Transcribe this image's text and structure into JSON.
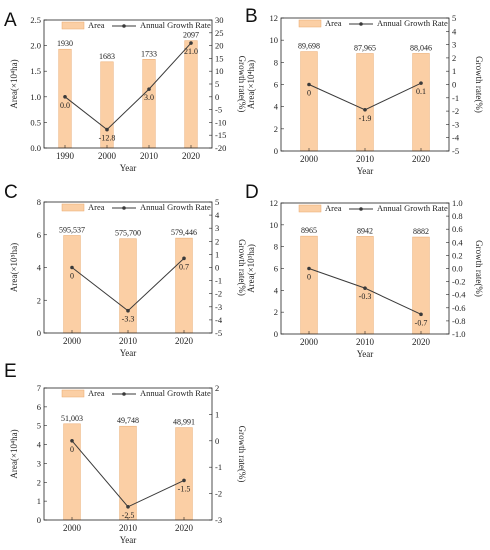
{
  "legend": {
    "bar_label": "Area",
    "line_label": "Annual Growth Rate"
  },
  "colors": {
    "bar_fill": "#fbcfa5",
    "bar_stroke": "#e9a86d",
    "line": "#3a3a3a",
    "text": "#222222"
  },
  "chart_data": [
    {
      "type": "bar",
      "panel": "A",
      "categories": [
        "1990",
        "2000",
        "2010",
        "2020"
      ],
      "xlabel": "Year",
      "ylabel": "Area(×10⁴ha)",
      "y2label": "Growth rate(%)",
      "ylim": [
        0,
        2.5
      ],
      "yticks": [
        "0.0",
        "0.5",
        "1.0",
        "1.5",
        "2.0",
        "2.5"
      ],
      "y2lim": [
        -20,
        30
      ],
      "y2ticks": [
        "-20",
        "-15",
        "-10",
        "-5",
        "0",
        "5",
        "10",
        "15",
        "20",
        "25",
        "30"
      ],
      "series": [
        {
          "name": "Area",
          "type": "bar",
          "values": [
            1930,
            1683,
            1733,
            2097
          ],
          "labels": [
            "1930",
            "1683",
            "1733",
            "2097"
          ],
          "scale": 0.001
        },
        {
          "name": "Annual Growth Rate",
          "type": "line",
          "values": [
            0.0,
            -12.8,
            3.0,
            21.0
          ],
          "labels": [
            "0.0",
            "-12.8",
            "3.0",
            "21.0"
          ]
        }
      ]
    },
    {
      "type": "bar",
      "panel": "B",
      "categories": [
        "2000",
        "2010",
        "2020"
      ],
      "xlabel": "Year",
      "ylabel": "Area(×10⁴ha)",
      "y2label": "Growth rate(%)",
      "ylim": [
        0,
        12
      ],
      "yticks": [
        "0",
        "2",
        "4",
        "6",
        "8",
        "10",
        "12"
      ],
      "y2lim": [
        -5,
        5
      ],
      "y2ticks": [
        "-5",
        "-4",
        "-3",
        "-2",
        "-1",
        "0",
        "1",
        "2",
        "3",
        "4",
        "5"
      ],
      "series": [
        {
          "name": "Area",
          "type": "bar",
          "values": [
            89698,
            87965,
            88046
          ],
          "labels": [
            "89,698",
            "87,965",
            "88,046"
          ],
          "scale": 0.0001
        },
        {
          "name": "Annual Growth Rate",
          "type": "line",
          "values": [
            0,
            -1.9,
            0.1
          ],
          "labels": [
            "0",
            "-1.9",
            "0.1"
          ]
        }
      ]
    },
    {
      "type": "bar",
      "panel": "C",
      "categories": [
        "2000",
        "2010",
        "2020"
      ],
      "xlabel": "Year",
      "ylabel": "Area(×10⁵ha)",
      "y2label": "Growth rate(%)",
      "ylim": [
        0,
        8
      ],
      "yticks": [
        "0",
        "2",
        "4",
        "6",
        "8"
      ],
      "y2lim": [
        -5,
        5
      ],
      "y2ticks": [
        "-5",
        "-4",
        "-3",
        "-2",
        "-1",
        "0",
        "1",
        "2",
        "3",
        "4",
        "5"
      ],
      "series": [
        {
          "name": "Area",
          "type": "bar",
          "values": [
            595537,
            575700,
            579446
          ],
          "labels": [
            "595,537",
            "575,700",
            "579,446"
          ],
          "scale": 1e-05
        },
        {
          "name": "Annual Growth Rate",
          "type": "line",
          "values": [
            0,
            -3.3,
            0.7
          ],
          "labels": [
            "0",
            "-3.3",
            "0.7"
          ]
        }
      ]
    },
    {
      "type": "bar",
      "panel": "D",
      "categories": [
        "2000",
        "2010",
        "2020"
      ],
      "xlabel": "Year",
      "ylabel": "Area(×10³ha)",
      "y2label": "Growth rate(%)",
      "ylim": [
        0,
        12
      ],
      "yticks": [
        "0",
        "2",
        "4",
        "6",
        "8",
        "10",
        "12"
      ],
      "y2lim": [
        -1.0,
        1.0
      ],
      "y2ticks": [
        "-1.0",
        "-0.8",
        "-0.6",
        "-0.4",
        "-0.2",
        "0.0",
        "0.2",
        "0.4",
        "0.6",
        "0.8",
        "1.0"
      ],
      "series": [
        {
          "name": "Area",
          "type": "bar",
          "values": [
            8965,
            8942,
            8882
          ],
          "labels": [
            "8965",
            "8942",
            "8882"
          ],
          "scale": 0.001
        },
        {
          "name": "Annual Growth Rate",
          "type": "line",
          "values": [
            0,
            -0.3,
            -0.7
          ],
          "labels": [
            "0",
            "-0.3",
            "-0.7"
          ]
        }
      ]
    },
    {
      "type": "bar",
      "panel": "E",
      "categories": [
        "2000",
        "2010",
        "2020"
      ],
      "xlabel": "Year",
      "ylabel": "Area(×10⁴ha)",
      "y2label": "Growth rate(%)",
      "ylim": [
        0,
        7
      ],
      "yticks": [
        "0",
        "1",
        "2",
        "3",
        "4",
        "5",
        "6",
        "7"
      ],
      "y2lim": [
        -3,
        2
      ],
      "y2ticks": [
        "-3",
        "-2",
        "-1",
        "0",
        "1",
        "2"
      ],
      "series": [
        {
          "name": "Area",
          "type": "bar",
          "values": [
            51003,
            49748,
            48991
          ],
          "labels": [
            "51,003",
            "49,748",
            "48,991"
          ],
          "scale": 0.0001
        },
        {
          "name": "Annual Growth Rate",
          "type": "line",
          "values": [
            0,
            -2.5,
            -1.5
          ],
          "labels": [
            "0",
            "-2.5",
            "-1.5"
          ]
        }
      ]
    }
  ]
}
